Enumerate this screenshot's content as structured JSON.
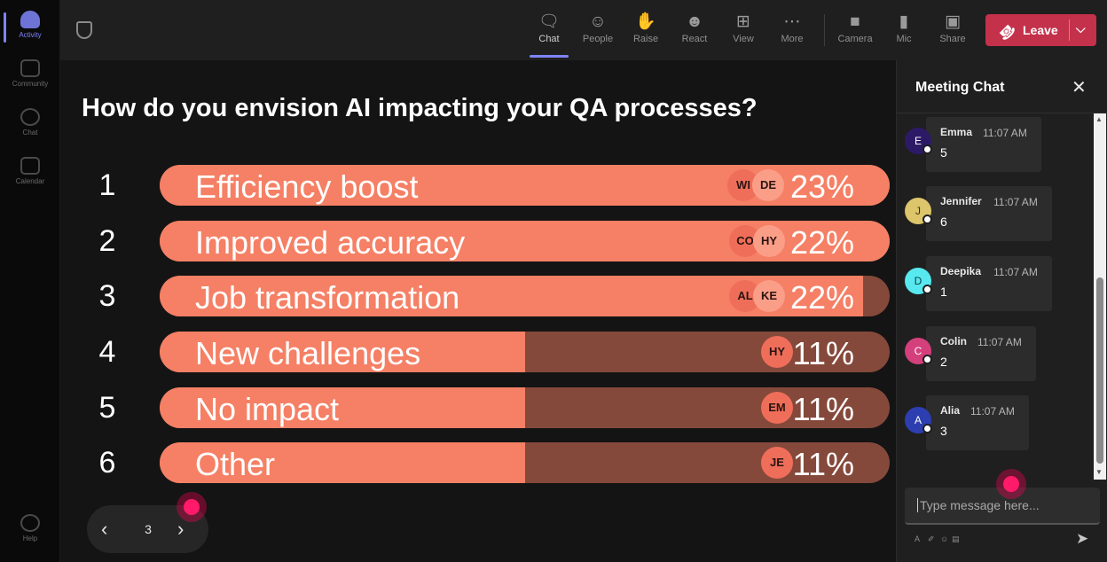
{
  "rail": {
    "items": [
      {
        "label": "Activity",
        "icon": "bell-icon"
      },
      {
        "label": "Community",
        "icon": "community-icon"
      },
      {
        "label": "Chat",
        "icon": "chat-icon"
      },
      {
        "label": "Calendar",
        "icon": "calendar-icon"
      },
      {
        "label": "Help",
        "icon": "help-icon"
      }
    ]
  },
  "toolbar": {
    "chat": "Chat",
    "people": "People",
    "raise": "Raise",
    "react": "React",
    "view": "View",
    "more": "More",
    "camera": "Camera",
    "mic": "Mic",
    "share": "Share",
    "leave": "Leave"
  },
  "poll": {
    "question": "How do you envision AI impacting your QA processes?",
    "options": [
      {
        "num": "1",
        "label": "Efficiency boost",
        "percent": "23%",
        "fill_fraction": 1.0,
        "avatars": [
          "WI",
          "DE"
        ]
      },
      {
        "num": "2",
        "label": "Improved accuracy",
        "percent": "22%",
        "fill_fraction": 1.0,
        "avatars": [
          "CO",
          "HY"
        ]
      },
      {
        "num": "3",
        "label": "Job transformation",
        "percent": "22%",
        "fill_fraction": 0.963,
        "avatars": [
          "AL",
          "KE"
        ]
      },
      {
        "num": "4",
        "label": "New challenges",
        "percent": "11%",
        "fill_fraction": 0.5,
        "avatars": [
          "HY"
        ]
      },
      {
        "num": "5",
        "label": "No impact",
        "percent": "11%",
        "fill_fraction": 0.5,
        "avatars": [
          "EM"
        ]
      },
      {
        "num": "6",
        "label": "Other",
        "percent": "11%",
        "fill_fraction": 0.5,
        "avatars": [
          "JE"
        ]
      }
    ],
    "colors": {
      "fill": "#f58065",
      "track": "#85493b"
    }
  },
  "pager": {
    "page": "3"
  },
  "chat": {
    "title": "Meeting Chat",
    "messages": [
      {
        "initial": "E",
        "name": "Emma",
        "time": "11:07 AM",
        "text": "5",
        "color": "#2d1a66",
        "text_color": "#ffffff"
      },
      {
        "initial": "J",
        "name": "Jennifer",
        "time": "11:07 AM",
        "text": "6",
        "color": "#dcc56a",
        "text_color": "#3a3000"
      },
      {
        "initial": "D",
        "name": "Deepika",
        "time": "11:07 AM",
        "text": "1",
        "color": "#57e9ef",
        "text_color": "#0b3c40"
      },
      {
        "initial": "C",
        "name": "Colin",
        "time": "11:07 AM",
        "text": "2",
        "color": "#d4407c",
        "text_color": "#ffffff"
      },
      {
        "initial": "A",
        "name": "Alia",
        "time": "11:07 AM",
        "text": "3",
        "color": "#2d3fb0",
        "text_color": "#ffffff"
      }
    ],
    "compose_placeholder": "Type message here..."
  }
}
